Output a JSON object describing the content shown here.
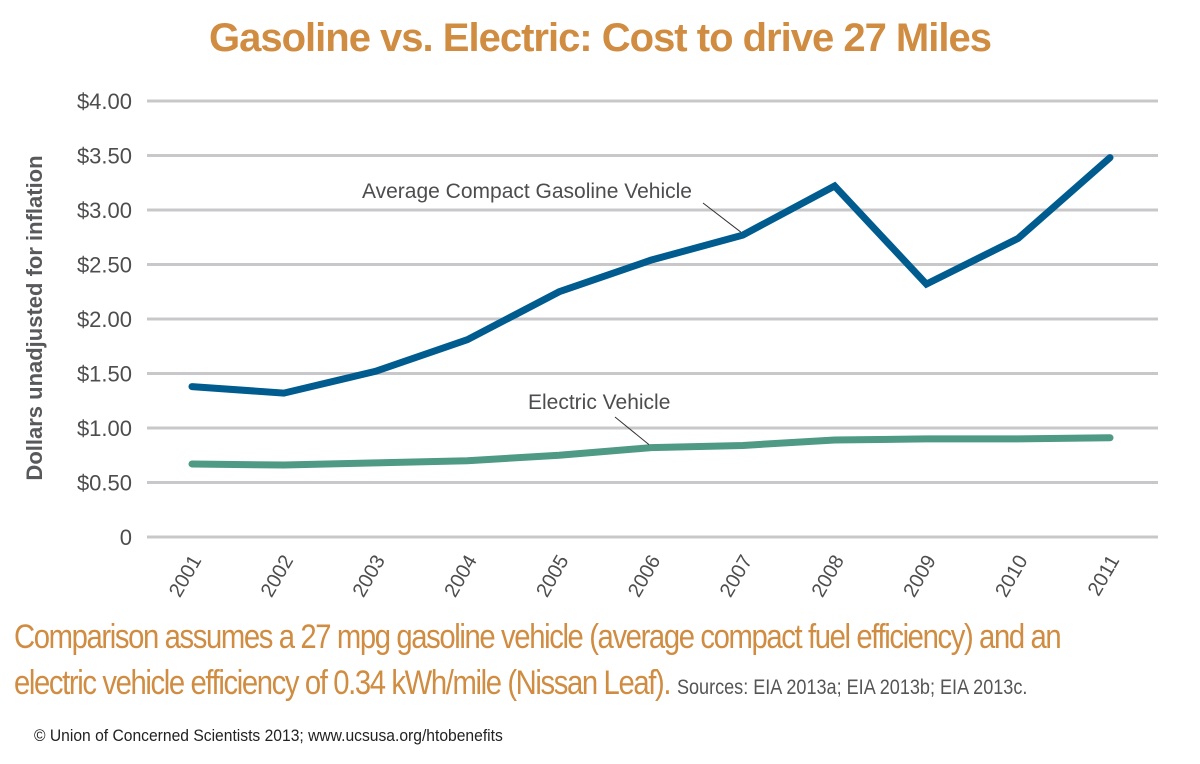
{
  "chart_data": {
    "type": "line",
    "title": "Gasoline vs. Electric: Cost to drive 27 Miles",
    "xlabel": "",
    "ylabel": "Dollars unadjusted for inflation",
    "categories": [
      "2001",
      "2002",
      "2003",
      "2004",
      "2005",
      "2006",
      "2007",
      "2008",
      "2009",
      "2010",
      "2011"
    ],
    "ylim": [
      0,
      4
    ],
    "yticks": [
      0,
      0.5,
      1,
      1.5,
      2,
      2.5,
      3,
      3.5,
      4
    ],
    "ytick_labels": [
      "0",
      "$0.50",
      "$1.00",
      "$1.50",
      "$2.00",
      "$2.50",
      "$3.00",
      "$3.50",
      "$4.00"
    ],
    "grid": true,
    "legend": "none (inline annotations)",
    "series": [
      {
        "name": "Average Compact Gasoline Vehicle",
        "color": "#005B8F",
        "values": [
          1.38,
          1.32,
          1.52,
          1.81,
          2.25,
          2.54,
          2.77,
          3.22,
          2.32,
          2.74,
          3.48
        ],
        "annotation": "Average Compact Gasoline Vehicle",
        "annotation_points_to": "2007"
      },
      {
        "name": "Electric Vehicle",
        "color": "#4E9A84",
        "values": [
          0.67,
          0.66,
          0.68,
          0.7,
          0.75,
          0.82,
          0.84,
          0.89,
          0.9,
          0.9,
          0.91
        ],
        "annotation": "Electric Vehicle",
        "annotation_points_to": "2006"
      }
    ]
  },
  "footer": {
    "note_line1": "Comparison assumes a 27 mpg gasoline vehicle (average compact fuel efficiency) and an",
    "note_line2": "electric vehicle efficiency of 0.34 kWh/mile (Nissan Leaf).",
    "sources": "Sources: EIA 2013a; EIA 2013b; EIA 2013c.",
    "copyright": "© Union of Concerned Scientists 2013; www.ucsusa.org/htobenefits"
  },
  "colors": {
    "title": "#D08C41",
    "grid": "#C8C8CA",
    "text": "#4d4d4f"
  }
}
